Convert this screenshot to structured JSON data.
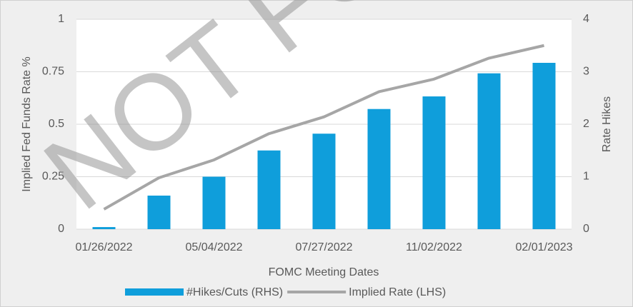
{
  "chart_data": {
    "type": "combo",
    "xlabel": "FOMC Meeting Dates",
    "ylabel": "Implied Fed Funds Rate %",
    "y2label": "Rate Hikes",
    "watermark": "NOT FO",
    "categories": [
      "01/26/2022",
      null,
      "05/04/2022",
      null,
      "07/27/2022",
      null,
      "11/02/2022",
      null,
      "02/01/2023"
    ],
    "series": [
      {
        "name": "#Hikes/Cuts (RHS)",
        "type": "bar",
        "axis": "y2",
        "color": "#0f9edb",
        "values": [
          0.04,
          0.64,
          1.0,
          1.5,
          1.82,
          2.29,
          2.53,
          2.97,
          3.17
        ]
      },
      {
        "name": "Implied Rate (LHS)",
        "type": "line",
        "axis": "y",
        "color": "#a6a6a6",
        "values": [
          0.095,
          0.245,
          0.33,
          0.455,
          0.535,
          0.655,
          0.715,
          0.815,
          0.875
        ]
      }
    ],
    "ylim": [
      0,
      1
    ],
    "yticks": [
      0,
      0.25,
      0.5,
      0.75,
      1
    ],
    "y2lim": [
      0,
      4
    ],
    "y2ticks": [
      0,
      1,
      2,
      3,
      4
    ],
    "grid": true,
    "legend": "bottom"
  }
}
